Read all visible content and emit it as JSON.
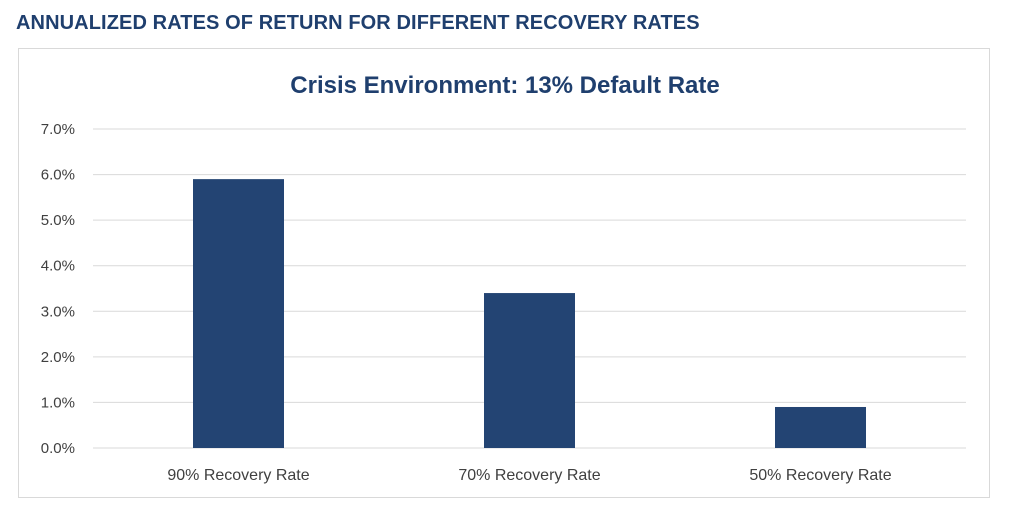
{
  "heading": "ANNUALIZED RATES OF RETURN FOR DIFFERENT RECOVERY RATES",
  "colors": {
    "bar": "#234473",
    "heading": "#1f3f6e",
    "grid": "#d9d9d9",
    "text": "#404040"
  },
  "chart_data": {
    "type": "bar",
    "title": "Crisis Environment: 13% Default Rate",
    "xlabel": "",
    "ylabel": "",
    "categories": [
      "90% Recovery Rate",
      "70% Recovery Rate",
      "50% Recovery Rate"
    ],
    "values": [
      5.9,
      3.4,
      0.9
    ],
    "ylim": [
      0,
      7
    ],
    "yticks": [
      "0.0%",
      "1.0%",
      "2.0%",
      "3.0%",
      "4.0%",
      "5.0%",
      "6.0%",
      "7.0%"
    ],
    "grid": true,
    "legend": "none"
  }
}
